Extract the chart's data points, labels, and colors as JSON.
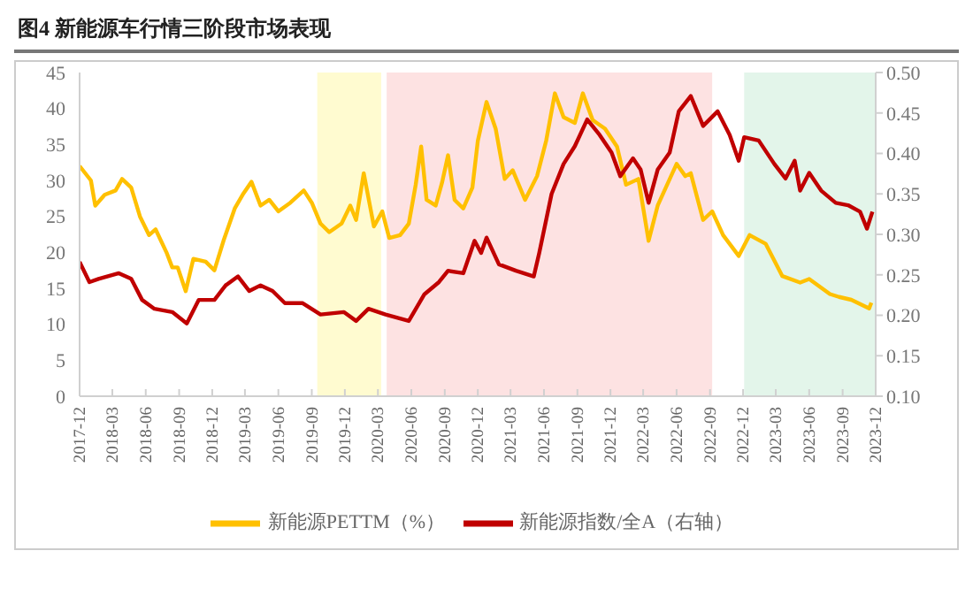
{
  "chart_data": {
    "type": "line",
    "title": "图4  新能源车行情三阶段市场表现",
    "xlim": [
      "2017-12-01",
      "2023-12-01"
    ],
    "xticks": [
      "2017-12",
      "2018-03",
      "2018-06",
      "2018-09",
      "2018-12",
      "2019-03",
      "2019-06",
      "2019-09",
      "2019-12",
      "2020-03",
      "2020-06",
      "2020-09",
      "2020-12",
      "2021-03",
      "2021-06",
      "2021-09",
      "2021-12",
      "2022-03",
      "2022-06",
      "2022-09",
      "2022-12",
      "2023-03",
      "2023-06",
      "2023-09",
      "2023-12"
    ],
    "ylim": [
      0,
      45
    ],
    "yticks": [
      0,
      5,
      10,
      15,
      20,
      25,
      30,
      35,
      40,
      45
    ],
    "y2lim": [
      0.1,
      0.5
    ],
    "y2ticks": [
      {
        "value": 0.1,
        "label": "0.10"
      },
      {
        "value": 0.15,
        "label": "0.15"
      },
      {
        "value": 0.2,
        "label": "0.20"
      },
      {
        "value": 0.25,
        "label": "0.25"
      },
      {
        "value": 0.3,
        "label": "0.30"
      },
      {
        "value": 0.35,
        "label": "0.35"
      },
      {
        "value": 0.4,
        "label": "0.40"
      },
      {
        "value": 0.45,
        "label": "0.45"
      },
      {
        "value": 0.5,
        "label": "0.50"
      }
    ],
    "grid": false,
    "legend": "bottom",
    "line_style": "solid",
    "bands": [
      {
        "axis": "x",
        "from": "2019-09-16",
        "to": "2020-03-10",
        "color": "#fffbd0"
      },
      {
        "axis": "x",
        "from": "2020-03-25",
        "to": "2022-09-07",
        "color": "#fde2e2"
      },
      {
        "axis": "x",
        "from": "2022-12-04",
        "to": "2023-12-01",
        "color": "#e3f5ea"
      }
    ],
    "series": [
      {
        "name": "新能源PETTM（%）",
        "color": "#ffc000",
        "x": [
          "2017-12-01",
          "2018-01-01",
          "2018-01-13",
          "2018-02-08",
          "2018-03-10",
          "2018-03-28",
          "2018-04-22",
          "2018-05-16",
          "2018-06-10",
          "2018-06-28",
          "2018-07-28",
          "2018-08-13",
          "2018-08-28",
          "2018-09-19",
          "2018-10-10",
          "2018-11-13",
          "2018-12-07",
          "2019-01-01",
          "2019-02-01",
          "2019-02-25",
          "2019-03-19",
          "2019-04-13",
          "2019-05-07",
          "2019-06-01",
          "2019-07-04",
          "2019-08-10",
          "2019-09-01",
          "2019-09-25",
          "2019-10-19",
          "2019-11-22",
          "2019-12-16",
          "2020-01-01",
          "2020-01-22",
          "2020-02-19",
          "2020-03-13",
          "2020-04-01",
          "2020-05-01",
          "2020-05-25",
          "2020-06-13",
          "2020-06-28",
          "2020-07-13",
          "2020-08-07",
          "2020-08-25",
          "2020-09-10",
          "2020-09-28",
          "2020-10-22",
          "2020-11-16",
          "2020-12-01",
          "2020-12-25",
          "2021-01-19",
          "2021-02-13",
          "2021-03-07",
          "2021-04-10",
          "2021-05-13",
          "2021-06-07",
          "2021-07-01",
          "2021-07-25",
          "2021-08-25",
          "2021-09-16",
          "2021-10-13",
          "2021-11-16",
          "2021-12-19",
          "2022-01-13",
          "2022-02-16",
          "2022-03-16",
          "2022-04-10",
          "2022-06-01",
          "2022-06-25",
          "2022-07-10",
          "2022-08-13",
          "2022-09-07",
          "2022-10-07",
          "2022-11-19",
          "2022-12-19",
          "2023-02-01",
          "2023-03-19",
          "2023-05-07",
          "2023-06-01",
          "2023-07-28",
          "2023-08-22",
          "2023-09-25",
          "2023-11-13",
          "2023-11-19"
        ],
        "values": [
          32,
          30,
          26.5,
          28,
          28.6,
          30.2,
          29,
          25,
          22.4,
          23.2,
          20,
          17.9,
          17.9,
          14.6,
          19.1,
          18.7,
          17.5,
          21.6,
          26.1,
          28.2,
          29.8,
          26.5,
          27.3,
          25.7,
          26.9,
          28.6,
          26.9,
          24,
          22.8,
          24,
          26.5,
          24.5,
          31,
          23.6,
          25.7,
          22,
          22.4,
          24,
          29.4,
          34.7,
          27.3,
          26.5,
          29.8,
          33.5,
          27.3,
          26.1,
          29,
          35.5,
          40.9,
          37.2,
          30.2,
          31.4,
          27.3,
          30.6,
          35.5,
          42.1,
          38.8,
          38,
          42.1,
          38.4,
          37.2,
          34.7,
          29.4,
          30.2,
          21.6,
          26.5,
          32.3,
          30.6,
          31,
          24.5,
          25.7,
          22.4,
          19.5,
          22.4,
          21.2,
          16.7,
          15.8,
          16.3,
          14.2,
          13.8,
          13.4,
          12.2,
          13
        ]
      },
      {
        "name": "新能源指数/全A（右轴）",
        "color": "#c00000",
        "axis": "y2",
        "x": [
          "2017-12-01",
          "2017-12-28",
          "2018-01-22",
          "2018-03-19",
          "2018-04-22",
          "2018-05-22",
          "2018-06-25",
          "2018-08-13",
          "2018-09-22",
          "2018-10-25",
          "2018-12-07",
          "2019-01-07",
          "2019-02-10",
          "2019-03-13",
          "2019-04-13",
          "2019-05-16",
          "2019-06-19",
          "2019-08-07",
          "2019-09-25",
          "2019-11-28",
          "2020-01-01",
          "2020-02-04",
          "2020-03-22",
          "2020-05-25",
          "2020-07-07",
          "2020-08-16",
          "2020-09-10",
          "2020-10-22",
          "2020-11-22",
          "2020-12-10",
          "2020-12-25",
          "2021-01-28",
          "2021-03-16",
          "2021-05-04",
          "2021-05-19",
          "2021-06-22",
          "2021-07-25",
          "2021-08-25",
          "2021-09-28",
          "2021-11-01",
          "2021-12-04",
          "2021-12-28",
          "2022-02-01",
          "2022-02-22",
          "2022-03-16",
          "2022-04-10",
          "2022-05-13",
          "2022-06-07",
          "2022-07-10",
          "2022-08-13",
          "2022-09-22",
          "2022-10-25",
          "2022-11-19",
          "2022-12-04",
          "2023-01-13",
          "2023-02-25",
          "2023-03-28",
          "2023-04-22",
          "2023-05-07",
          "2023-06-01",
          "2023-07-04",
          "2023-08-13",
          "2023-09-16",
          "2023-10-19",
          "2023-11-07",
          "2023-11-22"
        ],
        "values": [
          0.266,
          0.241,
          0.245,
          0.252,
          0.245,
          0.219,
          0.208,
          0.204,
          0.19,
          0.219,
          0.219,
          0.237,
          0.248,
          0.23,
          0.237,
          0.23,
          0.215,
          0.215,
          0.201,
          0.204,
          0.193,
          0.208,
          0.201,
          0.193,
          0.226,
          0.241,
          0.255,
          0.252,
          0.292,
          0.277,
          0.296,
          0.263,
          0.255,
          0.248,
          0.277,
          0.35,
          0.387,
          0.409,
          0.442,
          0.423,
          0.401,
          0.372,
          0.394,
          0.38,
          0.339,
          0.38,
          0.401,
          0.452,
          0.471,
          0.434,
          0.452,
          0.423,
          0.391,
          0.42,
          0.416,
          0.387,
          0.369,
          0.391,
          0.354,
          0.376,
          0.354,
          0.339,
          0.336,
          0.328,
          0.307,
          0.328
        ]
      }
    ]
  }
}
